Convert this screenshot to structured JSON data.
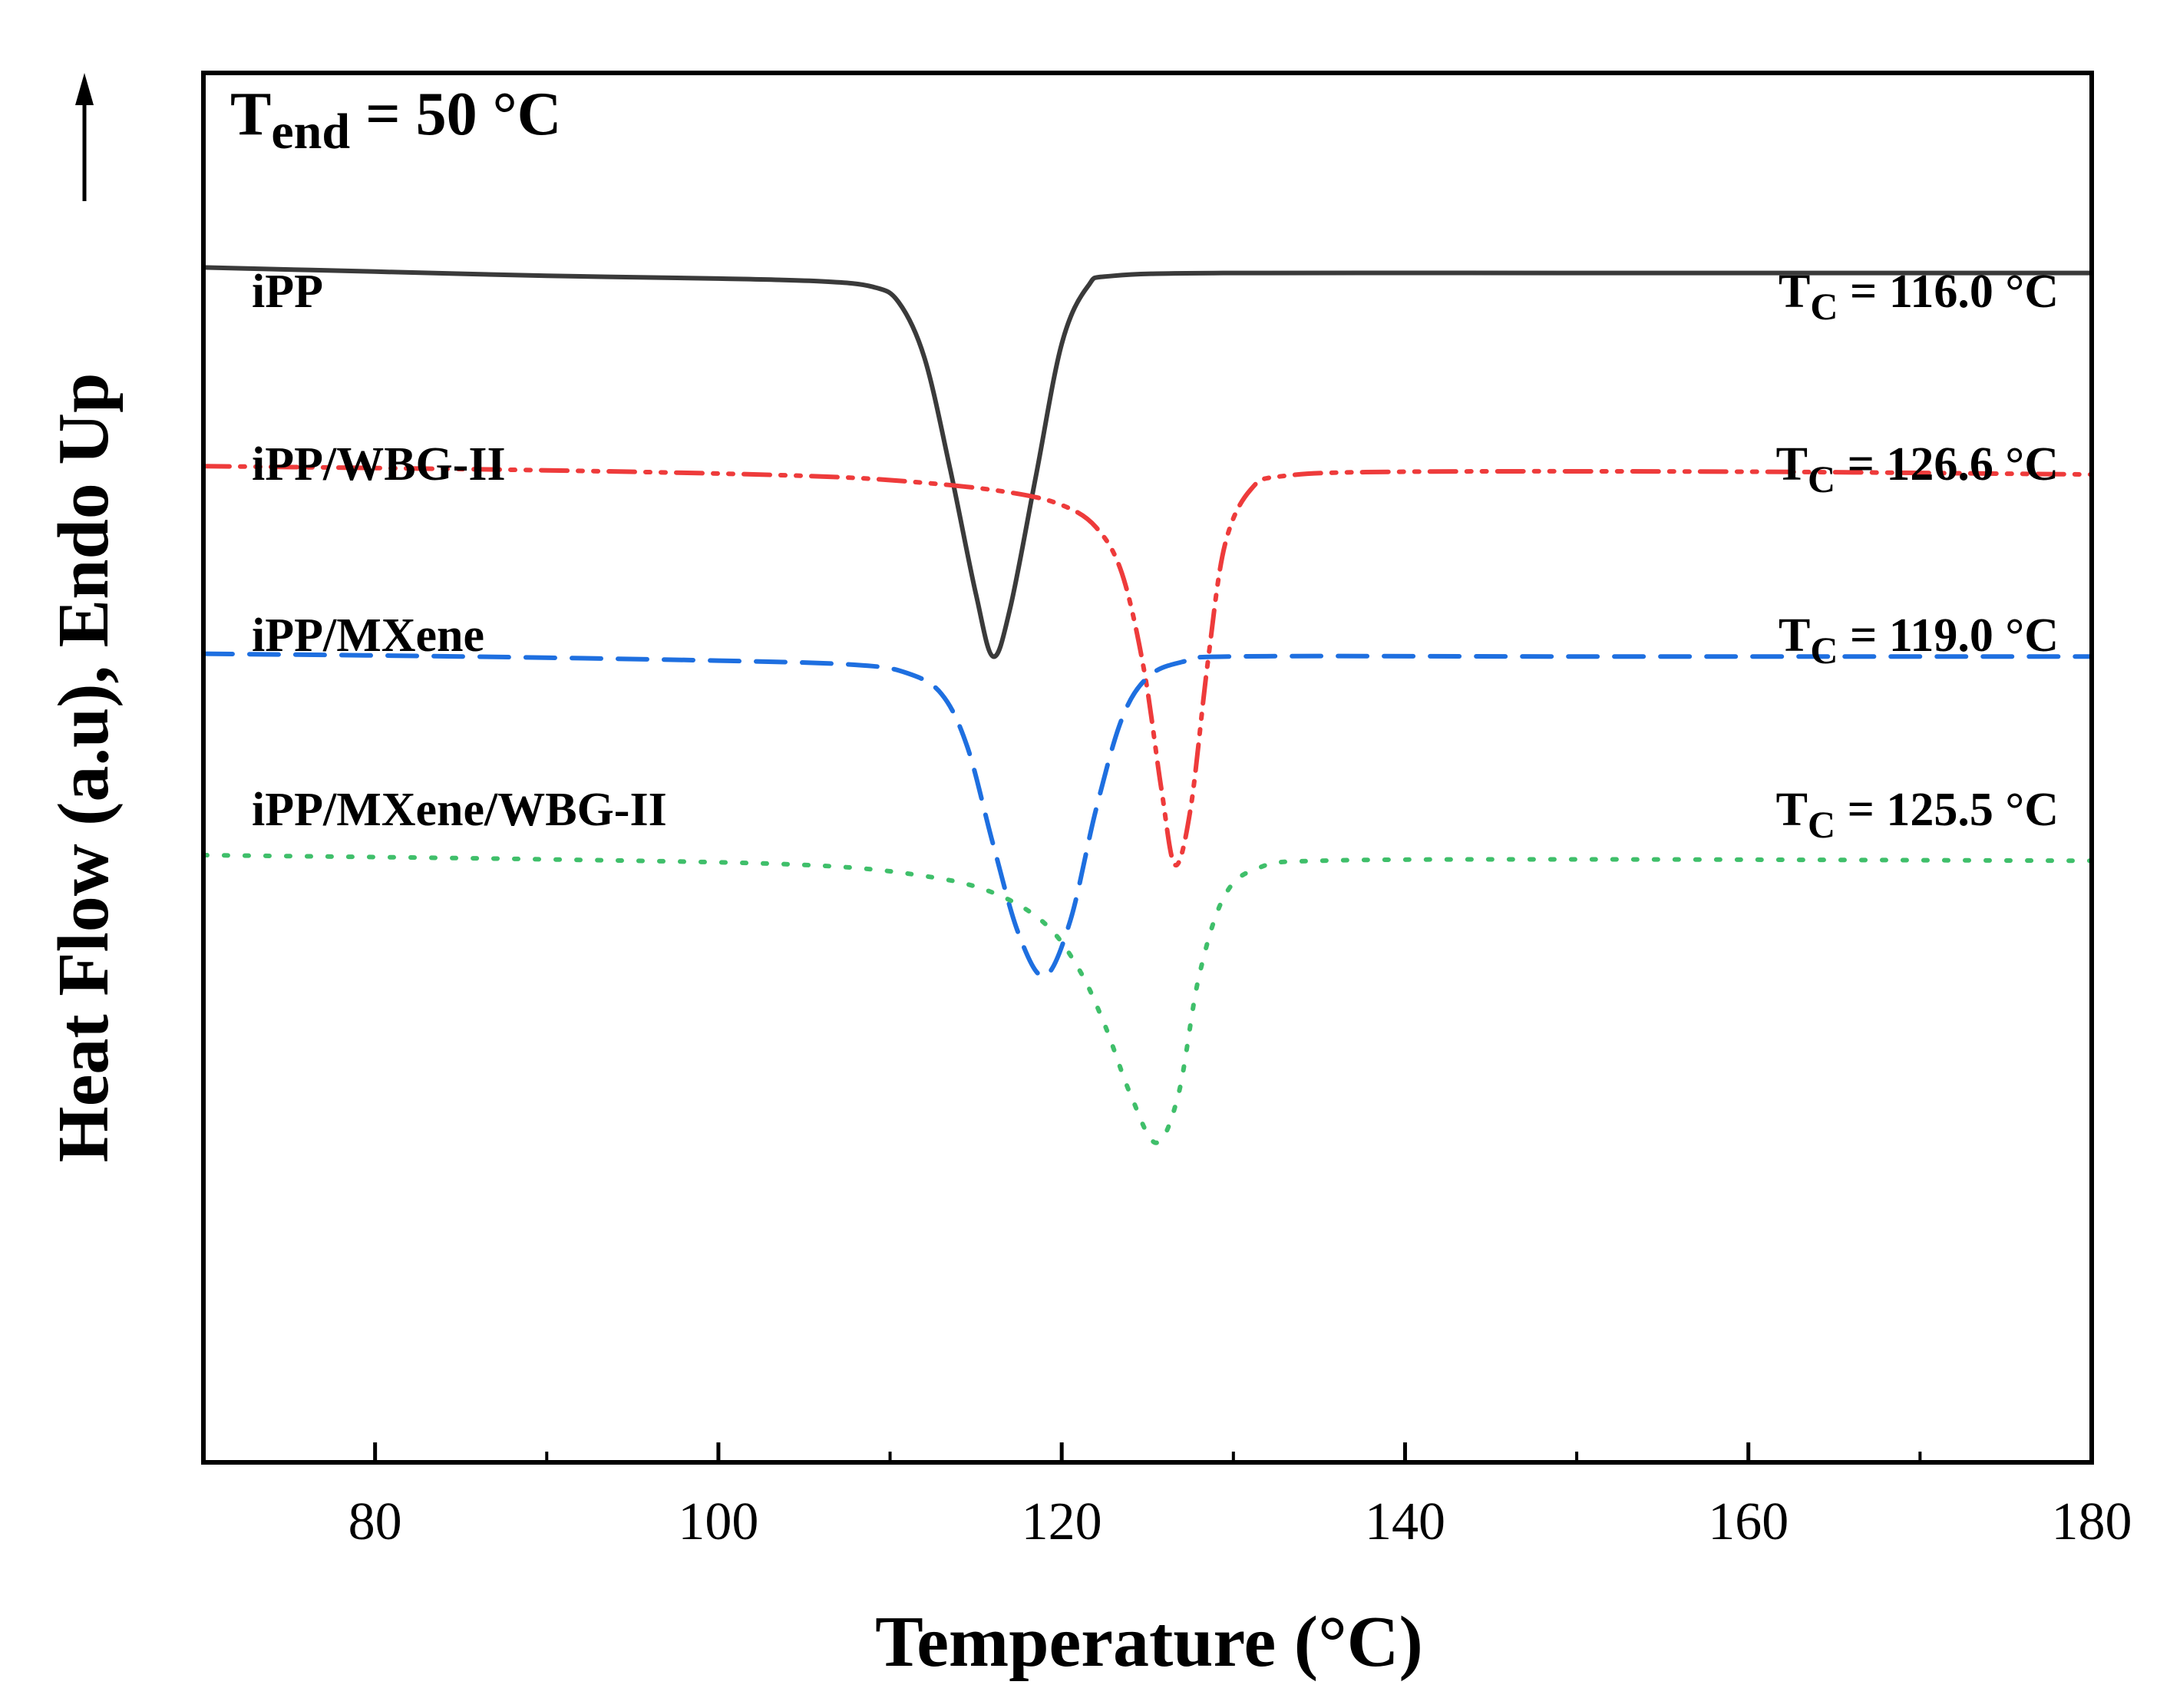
{
  "chart_data": {
    "type": "line",
    "xlabel": "Temperature (°C)",
    "ylabel": "Heat Flow (a.u), Endo Up",
    "xlim": [
      70,
      180
    ],
    "ylim": [
      0,
      100
    ],
    "x_ticks": [
      80,
      100,
      120,
      140,
      160,
      180
    ],
    "x_minor_ticks": [
      90,
      110,
      130,
      150,
      170
    ],
    "grid": false,
    "legend": "none",
    "annotation": {
      "prefix": "T",
      "subscript": "end",
      "text": " = 50 °C"
    },
    "series": [
      {
        "name": "iPP",
        "label": "iPP",
        "color": "#3a3a3a",
        "linestyle": "solid",
        "tc_prefix": "T",
        "tc_subscript": "C",
        "tc_text": " = 116.0 °C",
        "points": [
          [
            70,
            86.0
          ],
          [
            80,
            85.7
          ],
          [
            90,
            85.4
          ],
          [
            100,
            85.2
          ],
          [
            106,
            85.0
          ],
          [
            109,
            84.6
          ],
          [
            110.5,
            83.5
          ],
          [
            112,
            79.5
          ],
          [
            113.5,
            71.5
          ],
          [
            115,
            62.5
          ],
          [
            116.0,
            58.0
          ],
          [
            117,
            61.5
          ],
          [
            118.5,
            71.0
          ],
          [
            120,
            80.5
          ],
          [
            121.5,
            84.6
          ],
          [
            123,
            85.4
          ],
          [
            130,
            85.6
          ],
          [
            150,
            85.6
          ],
          [
            170,
            85.6
          ],
          [
            180,
            85.6
          ]
        ]
      },
      {
        "name": "iPP/WBG-II",
        "label": "iPP/WBG-II",
        "color": "#ee3b3b",
        "linestyle": "dashdotdot",
        "tc_prefix": "T",
        "tc_subscript": "C",
        "tc_text": " = 126.6 °C",
        "points": [
          [
            70,
            71.7
          ],
          [
            90,
            71.4
          ],
          [
            105,
            71.0
          ],
          [
            112,
            70.5
          ],
          [
            117,
            69.8
          ],
          [
            120,
            68.9
          ],
          [
            122,
            67.3
          ],
          [
            123.5,
            64.0
          ],
          [
            124.8,
            57.0
          ],
          [
            125.8,
            48.5
          ],
          [
            126.6,
            43.0
          ],
          [
            127.5,
            47.0
          ],
          [
            128.5,
            57.5
          ],
          [
            129.5,
            66.0
          ],
          [
            131,
            70.0
          ],
          [
            133,
            71.0
          ],
          [
            140,
            71.3
          ],
          [
            160,
            71.3
          ],
          [
            180,
            71.1
          ]
        ]
      },
      {
        "name": "iPP/MXene",
        "label": "iPP/MXene",
        "color": "#1e6fe0",
        "linestyle": "dashed",
        "tc_prefix": "T",
        "tc_subscript": "C",
        "tc_text": " = 119.0 °C",
        "points": [
          [
            70,
            58.2
          ],
          [
            85,
            58.0
          ],
          [
            100,
            57.7
          ],
          [
            108,
            57.4
          ],
          [
            111,
            56.8
          ],
          [
            113,
            55.3
          ],
          [
            114.5,
            51.5
          ],
          [
            116,
            44.5
          ],
          [
            117.5,
            38.0
          ],
          [
            119.0,
            35.0
          ],
          [
            120.5,
            39.0
          ],
          [
            122,
            47.0
          ],
          [
            123.5,
            53.5
          ],
          [
            125,
            56.5
          ],
          [
            127,
            57.6
          ],
          [
            130,
            58.0
          ],
          [
            150,
            58.0
          ],
          [
            180,
            58.0
          ]
        ]
      },
      {
        "name": "iPP/MXene/WBG-II",
        "label": "iPP/MXene/WBG-II",
        "color": "#3fbf6a",
        "linestyle": "dotted",
        "tc_prefix": "T",
        "tc_subscript": "C",
        "tc_text": " = 125.5 °C",
        "points": [
          [
            70,
            43.7
          ],
          [
            90,
            43.4
          ],
          [
            105,
            43.0
          ],
          [
            112,
            42.2
          ],
          [
            116,
            41.0
          ],
          [
            119,
            38.8
          ],
          [
            121,
            35.5
          ],
          [
            122.5,
            31.5
          ],
          [
            124,
            26.5
          ],
          [
            125.5,
            23.0
          ],
          [
            126.8,
            26.5
          ],
          [
            128,
            35.0
          ],
          [
            129.5,
            40.8
          ],
          [
            131.5,
            42.8
          ],
          [
            135,
            43.3
          ],
          [
            150,
            43.4
          ],
          [
            180,
            43.3
          ]
        ]
      }
    ]
  }
}
